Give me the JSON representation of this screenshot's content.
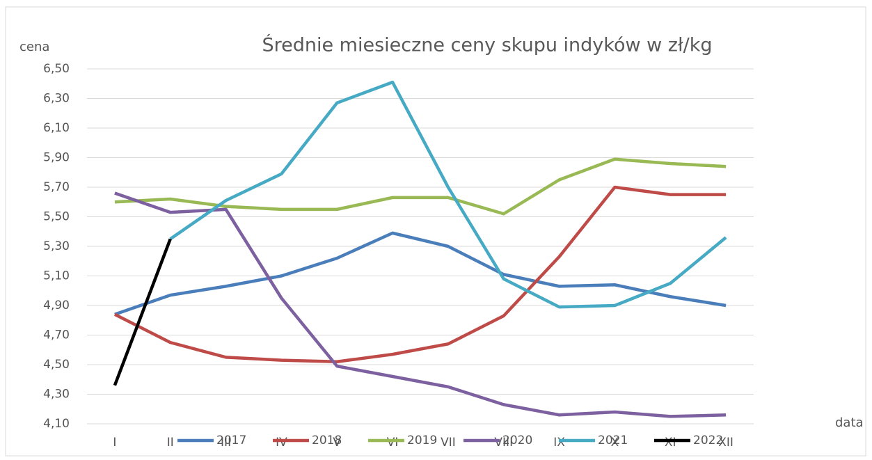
{
  "chart_data": {
    "type": "line",
    "title": "Średnie miesieczne ceny skupu indyków w zł/kg",
    "y_label": "cena",
    "x_label": "data",
    "categories": [
      "I",
      "II",
      "III",
      "IV",
      "V",
      "VI",
      "VII",
      "VIII",
      "IX",
      "X",
      "XI",
      "XII"
    ],
    "series": [
      {
        "name": "2017",
        "color": "#4a7ebb",
        "values": [
          4.84,
          4.97,
          5.03,
          5.1,
          5.22,
          5.39,
          5.3,
          5.11,
          5.03,
          5.04,
          4.96,
          4.9
        ]
      },
      {
        "name": "2018",
        "color": "#be4b48",
        "values": [
          4.84,
          4.65,
          4.55,
          4.53,
          4.52,
          4.57,
          4.64,
          4.83,
          5.23,
          5.7,
          5.65,
          5.65
        ]
      },
      {
        "name": "2019",
        "color": "#98b954",
        "values": [
          5.6,
          5.62,
          5.57,
          5.55,
          5.55,
          5.63,
          5.63,
          5.52,
          5.75,
          5.89,
          5.86,
          5.84
        ]
      },
      {
        "name": "2020",
        "color": "#7d60a0",
        "values": [
          5.66,
          5.53,
          5.55,
          4.95,
          4.49,
          4.42,
          4.35,
          4.23,
          4.16,
          4.18,
          4.15,
          4.16
        ]
      },
      {
        "name": "2021",
        "color": "#46aac5",
        "values": [
          null,
          5.35,
          5.61,
          5.79,
          6.27,
          6.41,
          5.7,
          5.08,
          4.89,
          4.9,
          5.05,
          5.36
        ]
      },
      {
        "name": "2022",
        "color": "#000000",
        "values": [
          4.36,
          5.35,
          null,
          null,
          null,
          null,
          null,
          null,
          null,
          null,
          null,
          null
        ]
      }
    ],
    "ylim": [
      4.1,
      6.5
    ],
    "yticks": [
      {
        "value": 4.1,
        "label": "4,10"
      },
      {
        "value": 4.3,
        "label": "4,30"
      },
      {
        "value": 4.5,
        "label": "4,50"
      },
      {
        "value": 4.7,
        "label": "4,70"
      },
      {
        "value": 4.9,
        "label": "4,90"
      },
      {
        "value": 5.1,
        "label": "5,10"
      },
      {
        "value": 5.3,
        "label": "5,30"
      },
      {
        "value": 5.5,
        "label": "5,50"
      },
      {
        "value": 5.7,
        "label": "5,70"
      },
      {
        "value": 5.9,
        "label": "5,90"
      },
      {
        "value": 6.1,
        "label": "6,10"
      },
      {
        "value": 6.3,
        "label": "6,30"
      },
      {
        "value": 6.5,
        "label": "6,50"
      }
    ],
    "grid": true,
    "legend": "bottom"
  }
}
